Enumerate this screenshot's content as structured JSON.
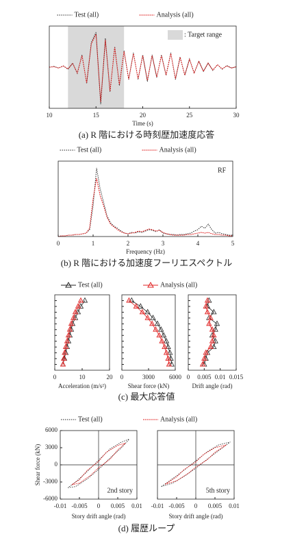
{
  "chart_data": [
    {
      "type": "line",
      "caption": "(a) R 階における時刻歴加速度応答",
      "xlabel": "Time (s)",
      "xlim": [
        10,
        30
      ],
      "xticks": [
        10,
        15,
        20,
        25,
        30
      ],
      "ylim": [
        -1,
        1
      ],
      "target_range": [
        12,
        18
      ],
      "target_label": ": Target range",
      "target_color": "#d9d9d9",
      "x": [
        10,
        10.5,
        11,
        11.5,
        12,
        12.5,
        13,
        13.5,
        14,
        14.5,
        15,
        15.5,
        16,
        16.5,
        17,
        17.5,
        18,
        18.5,
        19,
        19.5,
        20,
        20.5,
        21,
        21.5,
        22,
        22.5,
        23,
        23.5,
        24,
        24.5,
        25,
        25.5,
        26,
        26.5,
        27,
        27.5,
        28,
        28.5,
        29,
        29.5,
        30
      ],
      "series": [
        {
          "name": "Test (all)",
          "color": "#222222",
          "values": [
            0,
            0.02,
            -0.02,
            0.03,
            -0.05,
            0.1,
            -0.15,
            0.3,
            -0.4,
            0.6,
            0.85,
            -0.9,
            0.7,
            -0.6,
            0.5,
            -0.45,
            0.4,
            -0.3,
            0.35,
            -0.3,
            0.3,
            -0.35,
            0.3,
            -0.25,
            0.3,
            -0.2,
            0.35,
            -0.3,
            0.25,
            -0.2,
            0.2,
            -0.15,
            0.15,
            -0.1,
            0.1,
            -0.08,
            0.06,
            -0.05,
            0.04,
            -0.02,
            0.01
          ]
        },
        {
          "name": "Analysis (all)",
          "color": "#e02020",
          "values": [
            0,
            0.01,
            -0.02,
            0.03,
            -0.04,
            0.09,
            -0.14,
            0.28,
            -0.38,
            0.57,
            0.8,
            -0.85,
            0.66,
            -0.58,
            0.48,
            -0.42,
            0.38,
            -0.29,
            0.33,
            -0.28,
            0.28,
            -0.32,
            0.28,
            -0.24,
            0.28,
            -0.19,
            0.33,
            -0.28,
            0.24,
            -0.19,
            0.19,
            -0.14,
            0.14,
            -0.1,
            0.1,
            -0.07,
            0.06,
            -0.04,
            0.03,
            -0.02,
            0.01
          ]
        }
      ]
    },
    {
      "type": "line",
      "caption": "(b) R 階における加速度フーリエスペクトル",
      "xlabel": "Frequency (Hz)",
      "annotation": "RF",
      "xlim": [
        0,
        5
      ],
      "xticks": [
        0,
        1,
        2,
        3,
        4,
        5
      ],
      "ylim": [
        0,
        1.1
      ],
      "x": [
        0,
        0.1,
        0.2,
        0.3,
        0.4,
        0.5,
        0.6,
        0.7,
        0.8,
        0.9,
        1,
        1.1,
        1.2,
        1.3,
        1.4,
        1.5,
        1.6,
        1.7,
        1.8,
        1.9,
        2,
        2.1,
        2.2,
        2.3,
        2.4,
        2.5,
        2.6,
        2.7,
        2.8,
        2.9,
        3,
        3.1,
        3.2,
        3.3,
        3.4,
        3.5,
        3.6,
        3.7,
        3.8,
        3.9,
        4,
        4.1,
        4.2,
        4.3,
        4.4,
        4.5,
        4.6,
        4.7,
        4.8,
        4.9,
        5
      ],
      "series": [
        {
          "name": "Test (all)",
          "color": "#222222",
          "values": [
            0,
            0.01,
            0.01,
            0.02,
            0.02,
            0.03,
            0.03,
            0.04,
            0.05,
            0.1,
            0.45,
            1,
            0.7,
            0.5,
            0.3,
            0.2,
            0.15,
            0.12,
            0.08,
            0.05,
            0.04,
            0.06,
            0.05,
            0.07,
            0.06,
            0.08,
            0.1,
            0.09,
            0.07,
            0.1,
            0.05,
            0.04,
            0.03,
            0.03,
            0.02,
            0.03,
            0.03,
            0.04,
            0.05,
            0.08,
            0.1,
            0.15,
            0.12,
            0.18,
            0.1,
            0.05,
            0.06,
            0.04,
            0.03,
            0.02,
            0.02
          ]
        },
        {
          "name": "Analysis (all)",
          "color": "#e02020",
          "values": [
            0,
            0.01,
            0.01,
            0.02,
            0.02,
            0.03,
            0.03,
            0.04,
            0.05,
            0.12,
            0.55,
            0.85,
            0.6,
            0.45,
            0.28,
            0.18,
            0.14,
            0.1,
            0.07,
            0.05,
            0.04,
            0.05,
            0.06,
            0.08,
            0.07,
            0.09,
            0.11,
            0.1,
            0.08,
            0.09,
            0.06,
            0.04,
            0.03,
            0.02,
            0.02,
            0.02,
            0.02,
            0.03,
            0.03,
            0.04,
            0.05,
            0.06,
            0.05,
            0.06,
            0.04,
            0.03,
            0.03,
            0.02,
            0.02,
            0.01,
            0.01
          ]
        }
      ]
    },
    {
      "type": "profile",
      "caption": "(c) 最大応答値",
      "series": [
        {
          "name": "Test (all)",
          "color": "#222222"
        },
        {
          "name": "Analysis (all)",
          "color": "#e02020"
        }
      ],
      "subplots": [
        {
          "xlabel": "Acceleration (m/s²)",
          "xlim": [
            0,
            20
          ],
          "xticks": [
            0,
            10,
            20
          ],
          "ylim": [
            0,
            13
          ],
          "y": [
            1,
            2,
            3,
            4,
            5,
            6,
            7,
            8,
            9,
            10,
            11,
            12
          ],
          "series_values": [
            [
              3,
              3.5,
              4,
              4.5,
              5,
              5.5,
              6,
              6.5,
              7.5,
              8.5,
              9.5,
              11
            ],
            [
              3,
              3.3,
              3.6,
              4,
              4.5,
              5,
              5.5,
              6,
              6.8,
              7.5,
              8.5,
              9.5
            ]
          ]
        },
        {
          "xlabel": "Shear force (kN)",
          "xlim": [
            0,
            6000
          ],
          "xticks": [
            0,
            3000,
            6000
          ],
          "ylim": [
            0,
            13
          ],
          "y": [
            1,
            2,
            3,
            4,
            5,
            6,
            7,
            8,
            9,
            10,
            11,
            12
          ],
          "series_values": [
            [
              5600,
              5500,
              5400,
              5200,
              5000,
              4700,
              4400,
              4000,
              3500,
              2900,
              2100,
              1100
            ],
            [
              5300,
              5200,
              5000,
              4800,
              4500,
              4200,
              3800,
              3400,
              2900,
              2300,
              1600,
              800
            ]
          ]
        },
        {
          "xlabel": "Drift angle (rad)",
          "xlim": [
            0,
            0.015
          ],
          "xticks": [
            0,
            0.005,
            0.01,
            0.015
          ],
          "ylim": [
            0,
            13
          ],
          "y": [
            1,
            2,
            3,
            4,
            5,
            6,
            7,
            8,
            9,
            10,
            11,
            12
          ],
          "series_values": [
            [
              0.005,
              0.0055,
              0.006,
              0.008,
              0.0085,
              0.0075,
              0.0085,
              0.009,
              0.0065,
              0.008,
              0.006,
              0.0065
            ],
            [
              0.0045,
              0.005,
              0.0055,
              0.007,
              0.0075,
              0.008,
              0.0075,
              0.0065,
              0.007,
              0.006,
              0.0055,
              0.006
            ]
          ]
        }
      ]
    },
    {
      "type": "loop",
      "caption": "(d) 履歴ループ",
      "xlabel": "Story drift angle (rad)",
      "ylabel": "Shear force (kN)",
      "xlim": [
        -0.01,
        0.01
      ],
      "xticks": [
        -0.01,
        -0.005,
        0,
        0.005,
        0.01
      ],
      "ylim": [
        -6000,
        6000
      ],
      "yticks": [
        -6000,
        -3000,
        0,
        3000,
        6000
      ],
      "series": [
        {
          "name": "Test (all)",
          "color": "#222222"
        },
        {
          "name": "Analysis (all)",
          "color": "#e02020"
        }
      ],
      "subplots": [
        {
          "annotation": "2nd story",
          "series_x": [
            [
              -0.008,
              -0.006,
              -0.003,
              0,
              0.003,
              0.006,
              0.008,
              0.006,
              0.003,
              0,
              -0.003,
              -0.006,
              -0.008
            ],
            [
              -0.007,
              -0.005,
              -0.002,
              0,
              0.003,
              0.005,
              0.007,
              0.005,
              0.002,
              0,
              -0.003,
              -0.005,
              -0.007
            ]
          ],
          "series_y": [
            [
              -4000,
              -3800,
              -2500,
              -800,
              1200,
              3000,
              4500,
              4000,
              2800,
              800,
              -1200,
              -3000,
              -4000
            ],
            [
              -3500,
              -3200,
              -1800,
              -500,
              1000,
              2600,
              3800,
              3400,
              2200,
              600,
              -1000,
              -2600,
              -3500
            ]
          ]
        },
        {
          "annotation": "5th story",
          "series_x": [
            [
              -0.009,
              -0.006,
              -0.003,
              0,
              0.003,
              0.006,
              0.009,
              0.006,
              0.003,
              0,
              -0.003,
              -0.006,
              -0.009
            ],
            [
              -0.008,
              -0.005,
              -0.002,
              0,
              0.003,
              0.005,
              0.008,
              0.005,
              0.002,
              0,
              -0.003,
              -0.005,
              -0.008
            ]
          ],
          "series_y": [
            [
              -3800,
              -3200,
              -2000,
              -600,
              1000,
              2500,
              4000,
              3500,
              2300,
              700,
              -900,
              -2400,
              -3800
            ],
            [
              -3400,
              -2800,
              -1500,
              -400,
              900,
              2200,
              3500,
              3000,
              1800,
              500,
              -800,
              -2100,
              -3400
            ]
          ]
        }
      ]
    }
  ]
}
